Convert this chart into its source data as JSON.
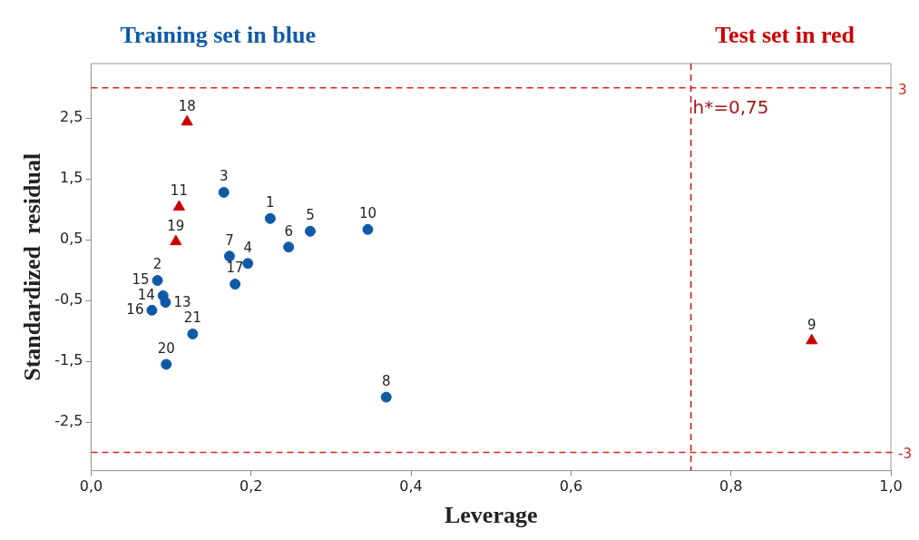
{
  "chart_data": {
    "type": "scatter",
    "xlabel": "Leverage",
    "ylabel": "Standardized  residual",
    "xlim": [
      0,
      1
    ],
    "ylim": [
      -3.3,
      3.4
    ],
    "xticks": [
      {
        "value": 0,
        "label": "0,0"
      },
      {
        "value": 0.2,
        "label": "0,2"
      },
      {
        "value": 0.4,
        "label": "0,4"
      },
      {
        "value": 0.6,
        "label": "0,6"
      },
      {
        "value": 0.8,
        "label": "0,8"
      },
      {
        "value": 1,
        "label": "1,0"
      }
    ],
    "yticks": [
      {
        "value": -2.5,
        "label": "-2,5"
      },
      {
        "value": -1.5,
        "label": "-1,5"
      },
      {
        "value": -0.5,
        "label": "-0,5"
      },
      {
        "value": 0.5,
        "label": "0,5"
      },
      {
        "value": 1.5,
        "label": "1,5"
      },
      {
        "value": 2.5,
        "label": "2,5"
      }
    ],
    "series": [
      {
        "name": "Training set in blue",
        "color": "#0f5aa6",
        "marker": "circle",
        "x": [
          0.224,
          0.166,
          0.196,
          0.274,
          0.247,
          0.173,
          0.369,
          0.346,
          0.093,
          0.09,
          0.083,
          0.076,
          0.18,
          0.094,
          0.127
        ],
        "values": [
          0.85,
          1.28,
          0.11,
          0.64,
          0.38,
          0.23,
          -2.09,
          0.67,
          -0.53,
          -0.42,
          -0.17,
          -0.66,
          -0.23,
          -1.55,
          -1.05
        ]
      },
      {
        "name": "Test set in red",
        "color": "#cc0000",
        "marker": "triangle",
        "x": [
          0.901,
          0.11,
          0.12,
          0.106
        ],
        "values": [
          -1.16,
          1.04,
          2.44,
          0.47
        ]
      }
    ],
    "annotations": [
      {
        "text": "1",
        "x": 0.224,
        "y": 0.85
      },
      {
        "text": "2",
        "x": 0.083,
        "y": -0.17
      },
      {
        "text": "3",
        "x": 0.166,
        "y": 1.28
      },
      {
        "text": "4",
        "x": 0.196,
        "y": 0.11
      },
      {
        "text": "5",
        "x": 0.274,
        "y": 0.64
      },
      {
        "text": "6",
        "x": 0.247,
        "y": 0.38
      },
      {
        "text": "7",
        "x": 0.173,
        "y": 0.23
      },
      {
        "text": "8",
        "x": 0.369,
        "y": -2.09
      },
      {
        "text": "10",
        "x": 0.346,
        "y": 0.67
      },
      {
        "text": "13",
        "x": 0.093,
        "y": -0.53
      },
      {
        "text": "14",
        "x": 0.09,
        "y": -0.42
      },
      {
        "text": "15",
        "x": 0.083,
        "y": -0.17
      },
      {
        "text": "16",
        "x": 0.076,
        "y": -0.66
      },
      {
        "text": "17",
        "x": 0.18,
        "y": -0.23
      },
      {
        "text": "20",
        "x": 0.094,
        "y": -1.55
      },
      {
        "text": "21",
        "x": 0.127,
        "y": -1.05
      },
      {
        "text": "9",
        "x": 0.901,
        "y": -1.16
      },
      {
        "text": "11",
        "x": 0.11,
        "y": 1.04
      },
      {
        "text": "18",
        "x": 0.12,
        "y": 2.44
      },
      {
        "text": "19",
        "x": 0.106,
        "y": 0.47
      }
    ],
    "ref_lines": [
      {
        "axis": "y",
        "value": 3,
        "label": "3",
        "color": "#dd2222",
        "line_style": "dashed"
      },
      {
        "axis": "y",
        "value": -3,
        "label": "-3",
        "color": "#dd2222",
        "line_style": "dashed"
      },
      {
        "axis": "x",
        "value": 0.75,
        "label": "h*=0,75",
        "color": "#cc1111",
        "line_style": "dashed"
      }
    ],
    "grid": false
  }
}
